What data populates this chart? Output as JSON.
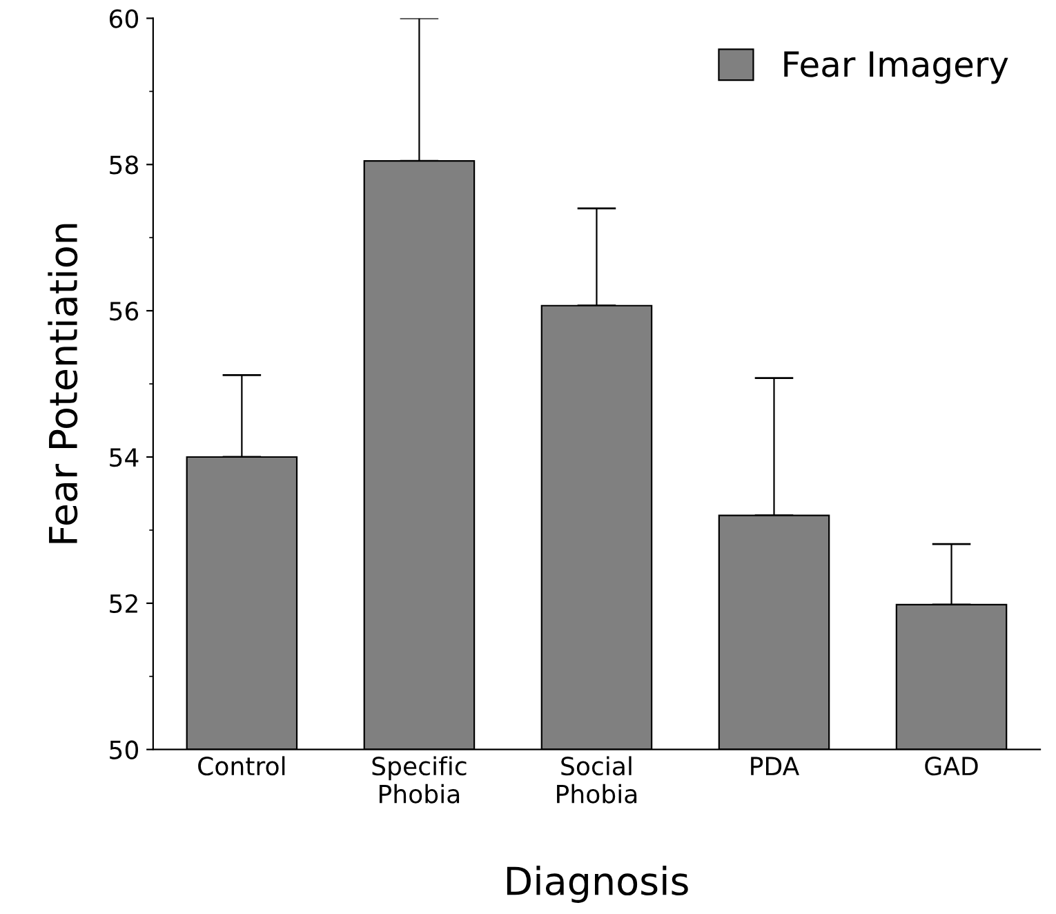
{
  "chart_data": {
    "type": "bar",
    "xlabel": "Diagnosis",
    "ylabel": "Fear Potentiation",
    "categories": [
      "Control",
      "Specific\nPhobia",
      "Social\nPhobia",
      "PDA",
      "GAD"
    ],
    "series": [
      {
        "name": "Fear Imagery",
        "color": "#808080",
        "values": [
          54.0,
          58.05,
          56.07,
          53.2,
          51.98
        ],
        "errors": [
          [
            54.0,
            55.12
          ],
          [
            58.05,
            60.0
          ],
          [
            56.07,
            57.4
          ],
          [
            53.2,
            55.08
          ],
          [
            51.98,
            52.81
          ]
        ]
      }
    ],
    "ylim": [
      50,
      60
    ],
    "yticks": [
      50,
      52,
      54,
      56,
      58,
      60
    ],
    "grid": false,
    "legend": "top right"
  }
}
